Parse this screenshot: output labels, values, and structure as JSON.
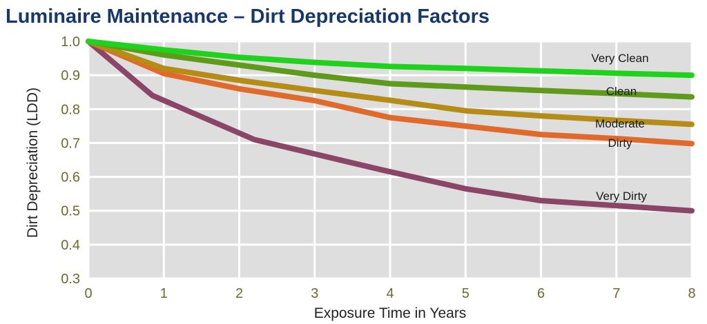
{
  "chart_data": {
    "type": "line",
    "title": "Luminaire Maintenance – Dirt Depreciation Factors",
    "xlabel": "Exposure Time in Years",
    "ylabel": "Dirt Depreciation (LDD)",
    "xlim": [
      0,
      8
    ],
    "ylim": [
      0.3,
      1.0
    ],
    "x_ticks": [
      "0",
      "1",
      "2",
      "3",
      "4",
      "5",
      "6",
      "7",
      "8"
    ],
    "y_ticks": [
      "1.0",
      "0.9",
      "0.8",
      "0.7",
      "0.6",
      "0.5",
      "0.4",
      "0.3"
    ],
    "grid": true,
    "series": [
      {
        "name": "Very Clean",
        "color": "#1fd21c",
        "x": [
          0,
          1,
          2,
          3,
          4,
          5,
          6,
          7,
          8
        ],
        "values": [
          1.0,
          0.975,
          0.953,
          0.938,
          0.926,
          0.92,
          0.913,
          0.906,
          0.9
        ]
      },
      {
        "name": "Clean",
        "color": "#5f9a1a",
        "x": [
          0,
          1,
          2,
          3,
          4,
          5,
          6,
          7,
          8
        ],
        "values": [
          1.0,
          0.96,
          0.93,
          0.9,
          0.875,
          0.865,
          0.855,
          0.846,
          0.836
        ]
      },
      {
        "name": "Moderate",
        "color": "#b58c16",
        "x": [
          0,
          1,
          2,
          3,
          4,
          5,
          6,
          7,
          8
        ],
        "values": [
          1.0,
          0.92,
          0.885,
          0.855,
          0.826,
          0.795,
          0.78,
          0.767,
          0.755
        ]
      },
      {
        "name": "Dirty",
        "color": "#e06a2c",
        "x": [
          0,
          1,
          2,
          3,
          4,
          5,
          6,
          7,
          8
        ],
        "values": [
          1.0,
          0.905,
          0.86,
          0.825,
          0.775,
          0.75,
          0.725,
          0.713,
          0.698
        ]
      },
      {
        "name": "Very Dirty",
        "color": "#8b4566",
        "x": [
          0,
          0.85,
          2.2,
          3.9,
          5.0,
          6.0,
          7.0,
          8.0
        ],
        "values": [
          1.0,
          0.84,
          0.71,
          0.62,
          0.565,
          0.53,
          0.515,
          0.5
        ]
      }
    ]
  },
  "colors": {
    "title": "#16386b",
    "tick": "#6b6b2a",
    "plot_background": "#dedede",
    "gridline": "#ffffff"
  }
}
